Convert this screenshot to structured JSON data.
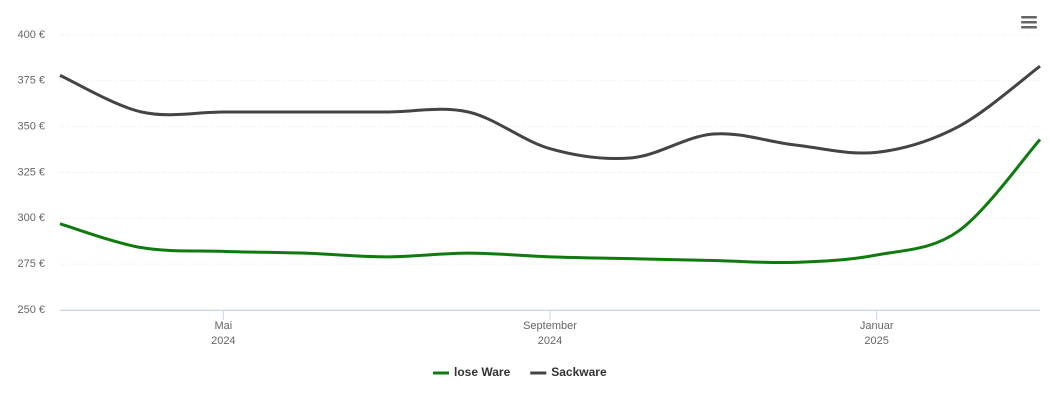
{
  "chart_data": {
    "type": "line",
    "x": [
      "2024-03",
      "2024-04",
      "2024-05",
      "2024-06",
      "2024-07",
      "2024-08",
      "2024-09",
      "2024-10",
      "2024-11",
      "2024-12",
      "2025-01",
      "2025-02",
      "2025-03"
    ],
    "series": [
      {
        "name": "lose Ware",
        "color": "#0f7b0f",
        "values": [
          297,
          284,
          282,
          281,
          279,
          281,
          279,
          278,
          277,
          276,
          280,
          293,
          343
        ]
      },
      {
        "name": "Sackware",
        "color": "#444444",
        "values": [
          378,
          358,
          358,
          358,
          358,
          358,
          338,
          333,
          346,
          340,
          336,
          350,
          383
        ]
      }
    ],
    "xlim": [
      "2024-03",
      "2025-03"
    ],
    "xticks": [
      {
        "value": "2024-05",
        "label": [
          "Mai",
          "2024"
        ]
      },
      {
        "value": "2024-09",
        "label": [
          "September",
          "2024"
        ]
      },
      {
        "value": "2025-01",
        "label": [
          "Januar",
          "2025"
        ]
      }
    ],
    "ylim": [
      250,
      400
    ],
    "yticks": [
      {
        "value": 250,
        "label": "250 €"
      },
      {
        "value": 275,
        "label": "275 €"
      },
      {
        "value": 300,
        "label": "300 €"
      },
      {
        "value": 325,
        "label": "325 €"
      },
      {
        "value": 350,
        "label": "350 €"
      },
      {
        "value": 375,
        "label": "375 €"
      },
      {
        "value": 400,
        "label": "400 €"
      }
    ],
    "grid": true,
    "legend": "bottom"
  }
}
